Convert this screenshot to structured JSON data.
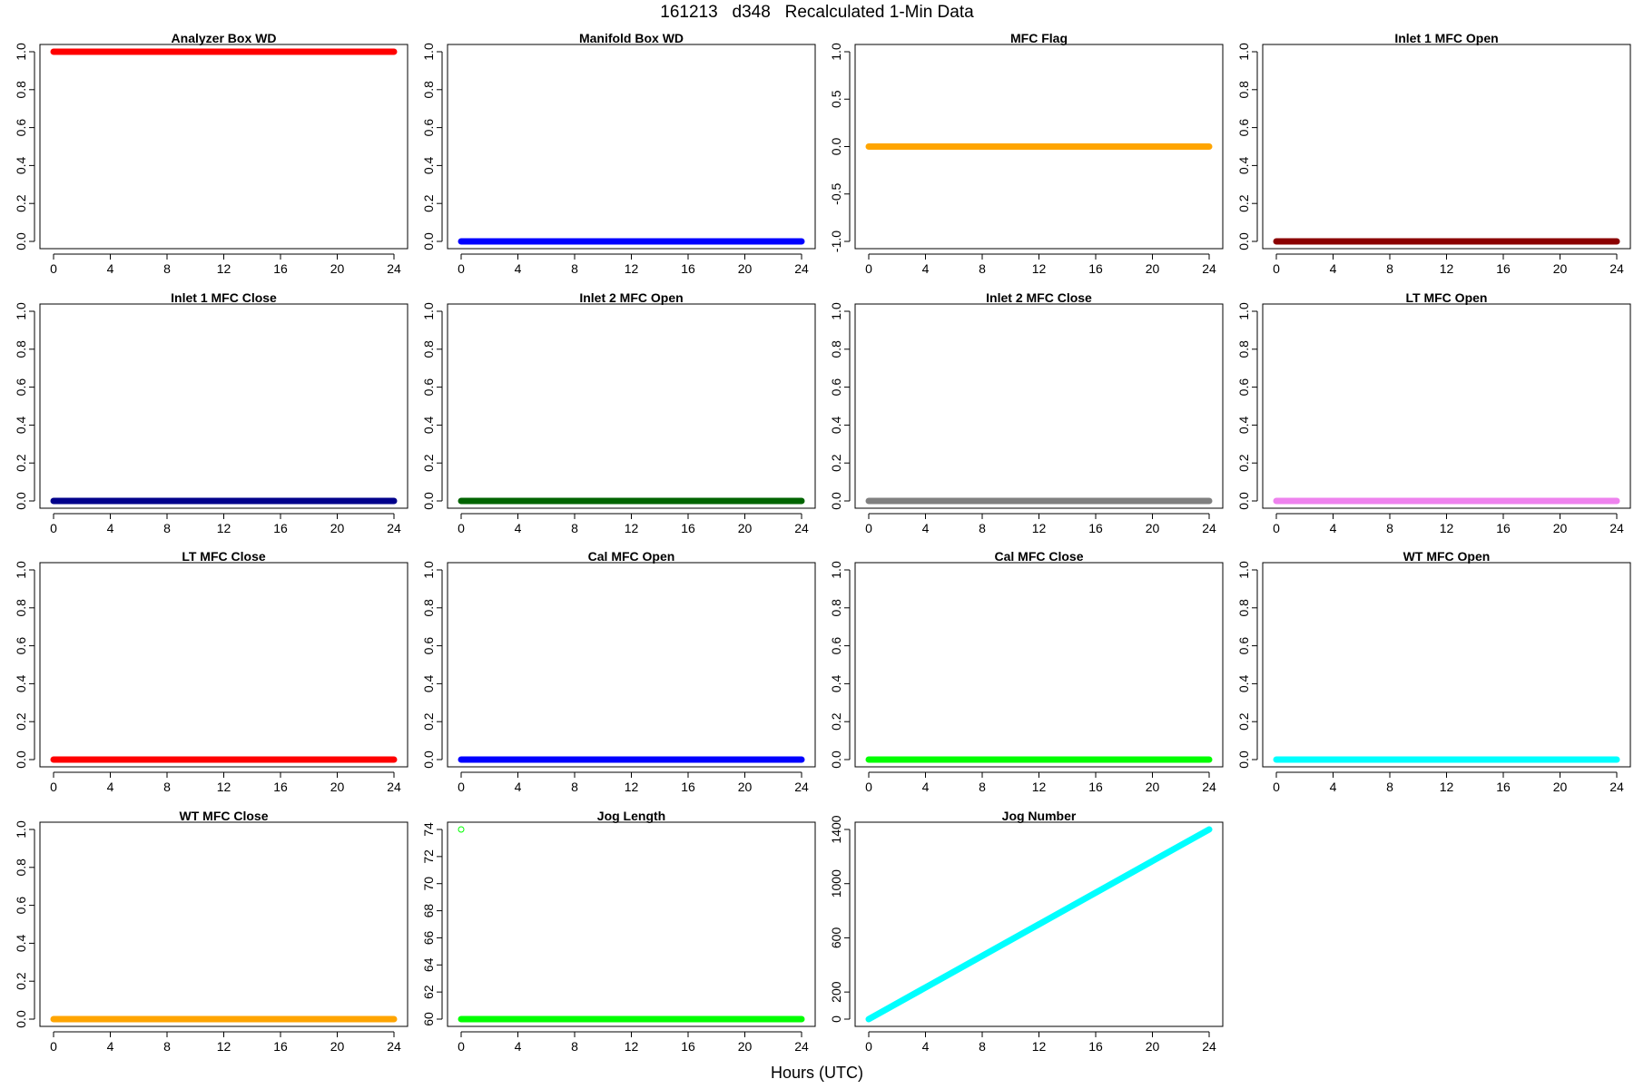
{
  "figure": {
    "title": "161213   d348   Recalculated 1-Min Data",
    "xlabel": "Hours (UTC)"
  },
  "chart_data": [
    {
      "type": "scatter",
      "title": "Analyzer Box WD",
      "color": "#ff0000",
      "marker": "filled",
      "xlim": [
        0,
        24
      ],
      "ylim": [
        0,
        1
      ],
      "x_ticks": [
        0,
        4,
        8,
        12,
        16,
        20,
        24
      ],
      "y_ticks": [
        "0.0",
        "0.2",
        "0.4",
        "0.6",
        "0.8",
        "1.0"
      ],
      "x": [
        0,
        24
      ],
      "y": [
        1,
        1
      ],
      "grid": false
    },
    {
      "type": "scatter",
      "title": "Manifold Box WD",
      "color": "#0000ff",
      "marker": "filled",
      "xlim": [
        0,
        24
      ],
      "ylim": [
        0,
        1
      ],
      "x_ticks": [
        0,
        4,
        8,
        12,
        16,
        20,
        24
      ],
      "y_ticks": [
        "0.0",
        "0.2",
        "0.4",
        "0.6",
        "0.8",
        "1.0"
      ],
      "x": [
        0,
        24
      ],
      "y": [
        0,
        0
      ],
      "grid": false
    },
    {
      "type": "scatter",
      "title": "MFC Flag",
      "color": "#ffa500",
      "marker": "filled",
      "xlim": [
        0,
        24
      ],
      "ylim": [
        -1,
        1
      ],
      "x_ticks": [
        0,
        4,
        8,
        12,
        16,
        20,
        24
      ],
      "y_ticks": [
        "-1.0",
        "-0.5",
        "0.0",
        "0.5",
        "1.0"
      ],
      "x": [
        0,
        24
      ],
      "y": [
        0,
        0
      ],
      "grid": false
    },
    {
      "type": "scatter",
      "title": "Inlet 1 MFC Open",
      "color": "#8b0000",
      "marker": "filled",
      "xlim": [
        0,
        24
      ],
      "ylim": [
        0,
        1
      ],
      "x_ticks": [
        0,
        4,
        8,
        12,
        16,
        20,
        24
      ],
      "y_ticks": [
        "0.0",
        "0.2",
        "0.4",
        "0.6",
        "0.8",
        "1.0"
      ],
      "x": [
        0,
        24
      ],
      "y": [
        0,
        0
      ],
      "grid": false
    },
    {
      "type": "scatter",
      "title": "Inlet 1 MFC Close",
      "color": "#00008b",
      "marker": "filled",
      "xlim": [
        0,
        24
      ],
      "ylim": [
        0,
        1
      ],
      "x_ticks": [
        0,
        4,
        8,
        12,
        16,
        20,
        24
      ],
      "y_ticks": [
        "0.0",
        "0.2",
        "0.4",
        "0.6",
        "0.8",
        "1.0"
      ],
      "x": [
        0,
        24
      ],
      "y": [
        0,
        0
      ],
      "grid": false
    },
    {
      "type": "scatter",
      "title": "Inlet 2 MFC Open",
      "color": "#006400",
      "marker": "filled",
      "xlim": [
        0,
        24
      ],
      "ylim": [
        0,
        1
      ],
      "x_ticks": [
        0,
        4,
        8,
        12,
        16,
        20,
        24
      ],
      "y_ticks": [
        "0.0",
        "0.2",
        "0.4",
        "0.6",
        "0.8",
        "1.0"
      ],
      "x": [
        0,
        24
      ],
      "y": [
        0,
        0
      ],
      "grid": false
    },
    {
      "type": "scatter",
      "title": "Inlet 2 MFC Close",
      "color": "#808080",
      "marker": "filled",
      "xlim": [
        0,
        24
      ],
      "ylim": [
        0,
        1
      ],
      "x_ticks": [
        0,
        4,
        8,
        12,
        16,
        20,
        24
      ],
      "y_ticks": [
        "0.0",
        "0.2",
        "0.4",
        "0.6",
        "0.8",
        "1.0"
      ],
      "x": [
        0,
        24
      ],
      "y": [
        0,
        0
      ],
      "grid": false
    },
    {
      "type": "scatter",
      "title": "LT MFC Open",
      "color": "#ee82ee",
      "marker": "filled",
      "xlim": [
        0,
        24
      ],
      "ylim": [
        0,
        1
      ],
      "x_ticks": [
        0,
        4,
        8,
        12,
        16,
        20,
        24
      ],
      "y_ticks": [
        "0.0",
        "0.2",
        "0.4",
        "0.6",
        "0.8",
        "1.0"
      ],
      "x": [
        0,
        24
      ],
      "y": [
        0,
        0
      ],
      "grid": false
    },
    {
      "type": "scatter",
      "title": "LT MFC Close",
      "color": "#ff0000",
      "marker": "filled",
      "xlim": [
        0,
        24
      ],
      "ylim": [
        0,
        1
      ],
      "x_ticks": [
        0,
        4,
        8,
        12,
        16,
        20,
        24
      ],
      "y_ticks": [
        "0.0",
        "0.2",
        "0.4",
        "0.6",
        "0.8",
        "1.0"
      ],
      "x": [
        0,
        24
      ],
      "y": [
        0,
        0
      ],
      "grid": false
    },
    {
      "type": "scatter",
      "title": "Cal MFC Open",
      "color": "#0000ff",
      "marker": "filled",
      "xlim": [
        0,
        24
      ],
      "ylim": [
        0,
        1
      ],
      "x_ticks": [
        0,
        4,
        8,
        12,
        16,
        20,
        24
      ],
      "y_ticks": [
        "0.0",
        "0.2",
        "0.4",
        "0.6",
        "0.8",
        "1.0"
      ],
      "x": [
        0,
        24
      ],
      "y": [
        0,
        0
      ],
      "grid": false
    },
    {
      "type": "scatter",
      "title": "Cal MFC Close",
      "color": "#00ff00",
      "marker": "filled",
      "xlim": [
        0,
        24
      ],
      "ylim": [
        0,
        1
      ],
      "x_ticks": [
        0,
        4,
        8,
        12,
        16,
        20,
        24
      ],
      "y_ticks": [
        "0.0",
        "0.2",
        "0.4",
        "0.6",
        "0.8",
        "1.0"
      ],
      "x": [
        0,
        24
      ],
      "y": [
        0,
        0
      ],
      "grid": false
    },
    {
      "type": "scatter",
      "title": "WT MFC Open",
      "color": "#00ffff",
      "marker": "filled",
      "xlim": [
        0,
        24
      ],
      "ylim": [
        0,
        1
      ],
      "x_ticks": [
        0,
        4,
        8,
        12,
        16,
        20,
        24
      ],
      "y_ticks": [
        "0.0",
        "0.2",
        "0.4",
        "0.6",
        "0.8",
        "1.0"
      ],
      "x": [
        0,
        24
      ],
      "y": [
        0,
        0
      ],
      "grid": false
    },
    {
      "type": "scatter",
      "title": "WT MFC Close",
      "color": "#ffa500",
      "marker": "filled",
      "xlim": [
        0,
        24
      ],
      "ylim": [
        0,
        1
      ],
      "x_ticks": [
        0,
        4,
        8,
        12,
        16,
        20,
        24
      ],
      "y_ticks": [
        "0.0",
        "0.2",
        "0.4",
        "0.6",
        "0.8",
        "1.0"
      ],
      "x": [
        0,
        24
      ],
      "y": [
        0,
        0
      ],
      "grid": false
    },
    {
      "type": "scatter",
      "title": "Jog Length",
      "color": "#00ff00",
      "marker": "filled",
      "xlim": [
        0,
        24
      ],
      "ylim": [
        60,
        74
      ],
      "x_ticks": [
        0,
        4,
        8,
        12,
        16,
        20,
        24
      ],
      "y_ticks": [
        "60",
        "62",
        "64",
        "66",
        "68",
        "70",
        "72",
        "74"
      ],
      "x": [
        0,
        24
      ],
      "y": [
        60,
        60
      ],
      "outliers": [
        {
          "x": 0,
          "y": 74
        }
      ],
      "grid": false
    },
    {
      "type": "scatter",
      "title": "Jog Number",
      "color": "#00ffff",
      "marker": "filled",
      "xlim": [
        0,
        24
      ],
      "ylim": [
        0,
        1400
      ],
      "x_ticks": [
        0,
        4,
        8,
        12,
        16,
        20,
        24
      ],
      "y_ticks": [
        "0",
        "200",
        "600",
        "1000",
        "1400"
      ],
      "x": [
        0,
        24
      ],
      "y": [
        0,
        1400
      ],
      "grid": false
    }
  ]
}
